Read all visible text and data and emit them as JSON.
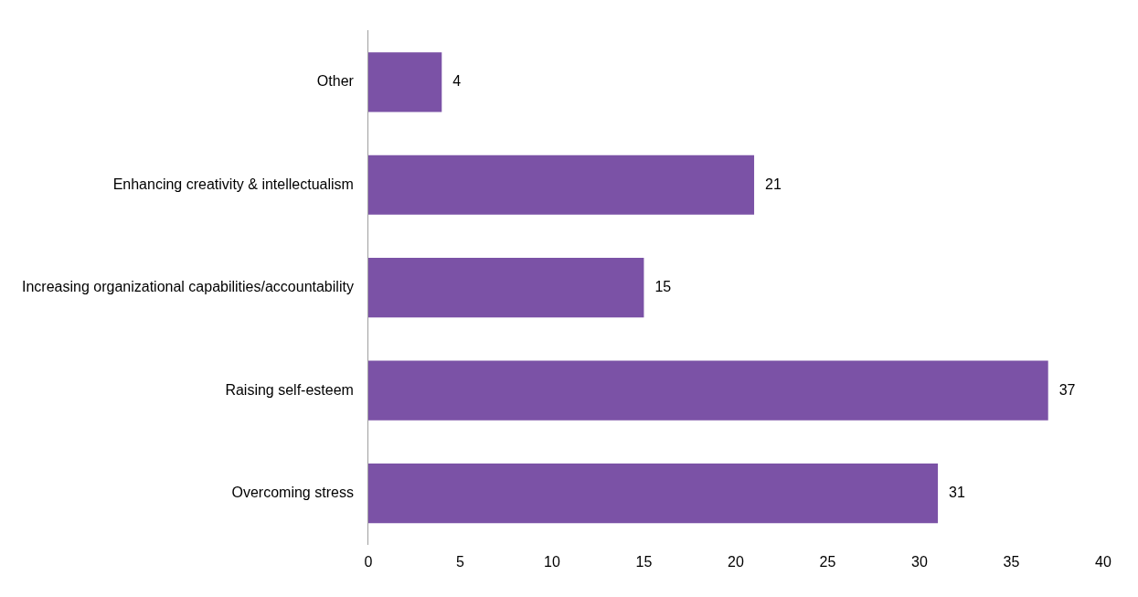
{
  "chart_data": {
    "type": "bar",
    "orientation": "horizontal",
    "categories": [
      "Other",
      "Enhancing creativity & intellectualism",
      "Increasing organizational capabilities/accountability",
      "Raising self-esteem",
      "Overcoming stress"
    ],
    "values": [
      4,
      21,
      15,
      37,
      31
    ],
    "color": "#7b52a6",
    "xlim": [
      0,
      40
    ],
    "xticks": [
      0,
      5,
      10,
      15,
      20,
      25,
      30,
      35,
      40
    ],
    "grid": false,
    "data_labels": true,
    "legend": false
  }
}
